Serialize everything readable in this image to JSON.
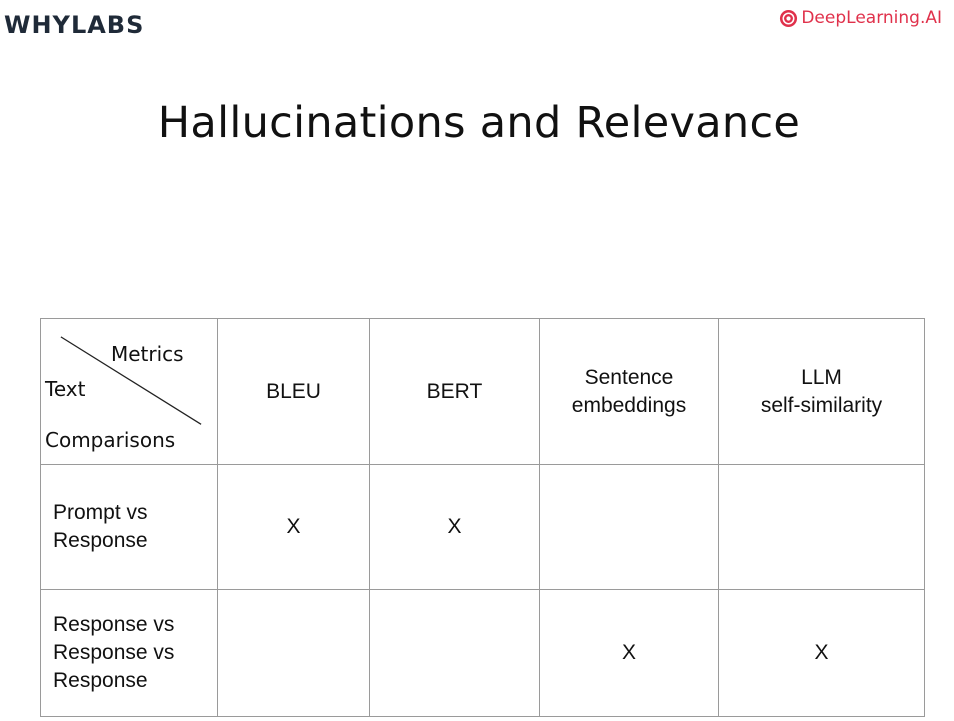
{
  "header": {
    "left_logo": "WHYLABS",
    "right_logo": "DeepLearning.AI",
    "right_logo_icon": "deeplearning-ai-logo-icon",
    "brand_color": "#e0314b"
  },
  "title": "Hallucinations and Relevance",
  "table": {
    "corner": {
      "top": "Metrics",
      "middle": "Text",
      "bottom": "Comparisons"
    },
    "columns": [
      [
        "BLEU"
      ],
      [
        "BERT"
      ],
      [
        "Sentence",
        "embeddings"
      ],
      [
        "LLM",
        "self-similarity"
      ]
    ],
    "rows": [
      {
        "label": [
          "Prompt vs",
          "Response"
        ],
        "cells": [
          "X",
          "X",
          "",
          ""
        ]
      },
      {
        "label": [
          "Response vs",
          "Response vs",
          "Response"
        ],
        "cells": [
          "",
          "",
          "X",
          "X"
        ]
      }
    ]
  }
}
